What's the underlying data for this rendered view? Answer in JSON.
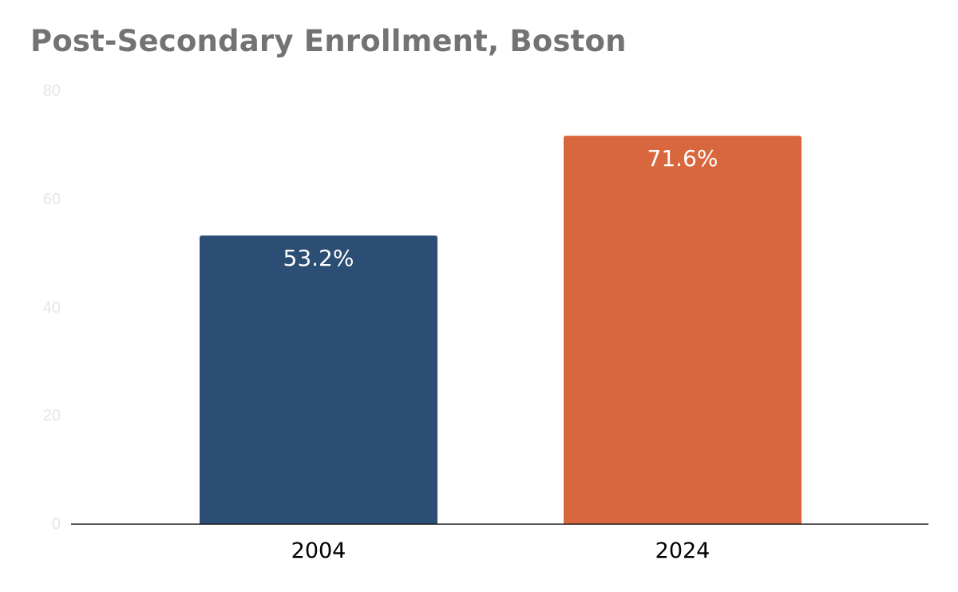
{
  "chart_data": {
    "type": "bar",
    "title": "Post-Secondary Enrollment, Boston",
    "xlabel": "",
    "ylabel": "",
    "categories": [
      "2004",
      "2024"
    ],
    "values": [
      53.2,
      71.6
    ],
    "data_labels": [
      "53.2%",
      "71.6%"
    ],
    "bar_colors": [
      "#2c4d74",
      "#d9673e"
    ],
    "ylim": [
      0,
      80
    ],
    "yticks": [
      "0",
      "20",
      "40",
      "60",
      "80"
    ],
    "grid": false,
    "legend": "none"
  }
}
